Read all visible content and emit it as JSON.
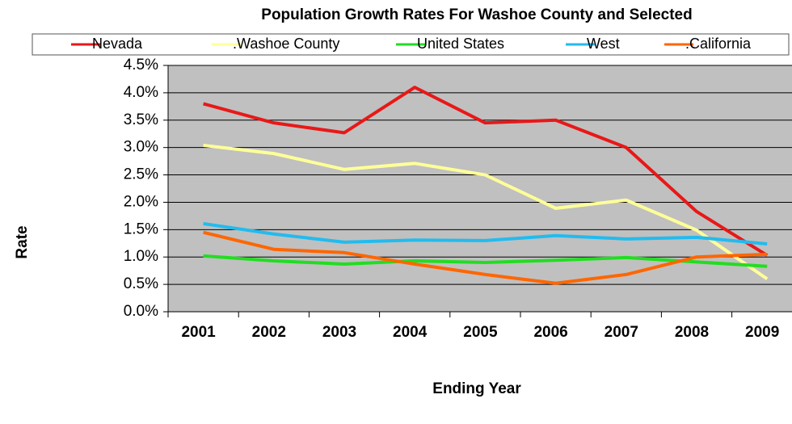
{
  "chart_data": {
    "type": "line",
    "title": "Population Growth Rates For Washoe County and Selected",
    "x_label": "Ending Year",
    "y_label": "Rate",
    "categories": [
      "2001",
      "2002",
      "2003",
      "2004",
      "2005",
      "2006",
      "2007",
      "2008",
      "2009"
    ],
    "series": [
      {
        "name": "Nevada",
        "color": "#e81818",
        "values": [
          3.8,
          3.45,
          3.27,
          4.1,
          3.45,
          3.5,
          3.0,
          1.83,
          1.03
        ]
      },
      {
        "name": ".Washoe County",
        "color": "#ffff99",
        "values": [
          3.04,
          2.89,
          2.6,
          2.71,
          2.5,
          1.89,
          2.04,
          1.49,
          0.6
        ]
      },
      {
        "name": "United States",
        "color": "#22dd22",
        "values": [
          1.02,
          0.93,
          0.87,
          0.93,
          0.9,
          0.94,
          0.99,
          0.91,
          0.83
        ]
      },
      {
        "name": "West",
        "color": "#22bbee",
        "values": [
          1.61,
          1.42,
          1.27,
          1.31,
          1.3,
          1.39,
          1.33,
          1.36,
          1.24
        ]
      },
      {
        "name": ".California",
        "color": "#ff6600",
        "values": [
          1.45,
          1.14,
          1.08,
          0.87,
          0.68,
          0.52,
          0.68,
          1.0,
          1.05
        ]
      }
    ],
    "ylim": [
      0,
      4.5
    ],
    "yticks": [
      {
        "value": 0,
        "label": "0.0%"
      },
      {
        "value": 0.5,
        "label": "0.5%"
      },
      {
        "value": 1,
        "label": "1.0%"
      },
      {
        "value": 1.5,
        "label": "1.5%"
      },
      {
        "value": 2,
        "label": "2.0%"
      },
      {
        "value": 2.5,
        "label": "2.5%"
      },
      {
        "value": 3,
        "label": "3.0%"
      },
      {
        "value": 3.5,
        "label": "3.5%"
      },
      {
        "value": 4,
        "label": "4.0%"
      },
      {
        "value": 4.5,
        "label": "4.5%"
      }
    ],
    "grid": true,
    "legend": "top",
    "plot_color": "#c0c0c0"
  }
}
